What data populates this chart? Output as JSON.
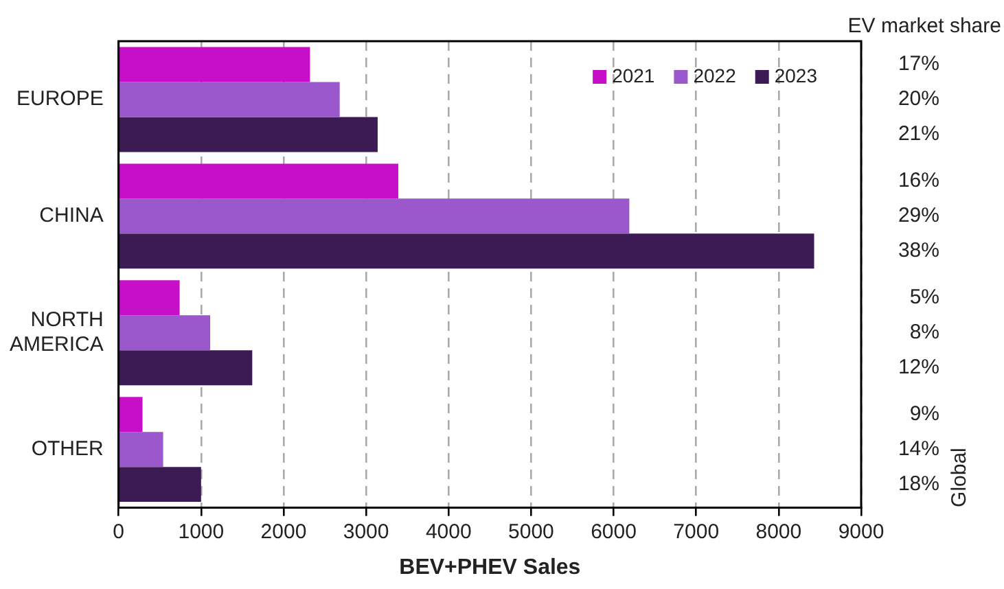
{
  "chart_data": {
    "type": "bar",
    "orientation": "horizontal",
    "xlabel": "BEV+PHEV Sales",
    "categories": [
      "EUROPE",
      "CHINA",
      "NORTH AMERICA",
      "OTHER"
    ],
    "series": [
      {
        "name": "2021",
        "color": "#c60fc6",
        "values": [
          2320,
          3390,
          740,
          290
        ]
      },
      {
        "name": "2022",
        "color": "#9b57cc",
        "values": [
          2680,
          6190,
          1110,
          540
        ]
      },
      {
        "name": "2023",
        "color": "#3c1b55",
        "values": [
          3140,
          8430,
          1620,
          1000
        ]
      }
    ],
    "xlim": [
      0,
      9000
    ],
    "xticks": [
      0,
      1000,
      2000,
      3000,
      4000,
      5000,
      6000,
      7000,
      8000,
      9000
    ],
    "grid": "x",
    "legend": "top right",
    "annotations": [
      "EV market share",
      "17%",
      "20%",
      "21%",
      "16%",
      "29%",
      "38%",
      "5%",
      "8%",
      "12%",
      "9%",
      "14%",
      "18%",
      "Global"
    ]
  }
}
